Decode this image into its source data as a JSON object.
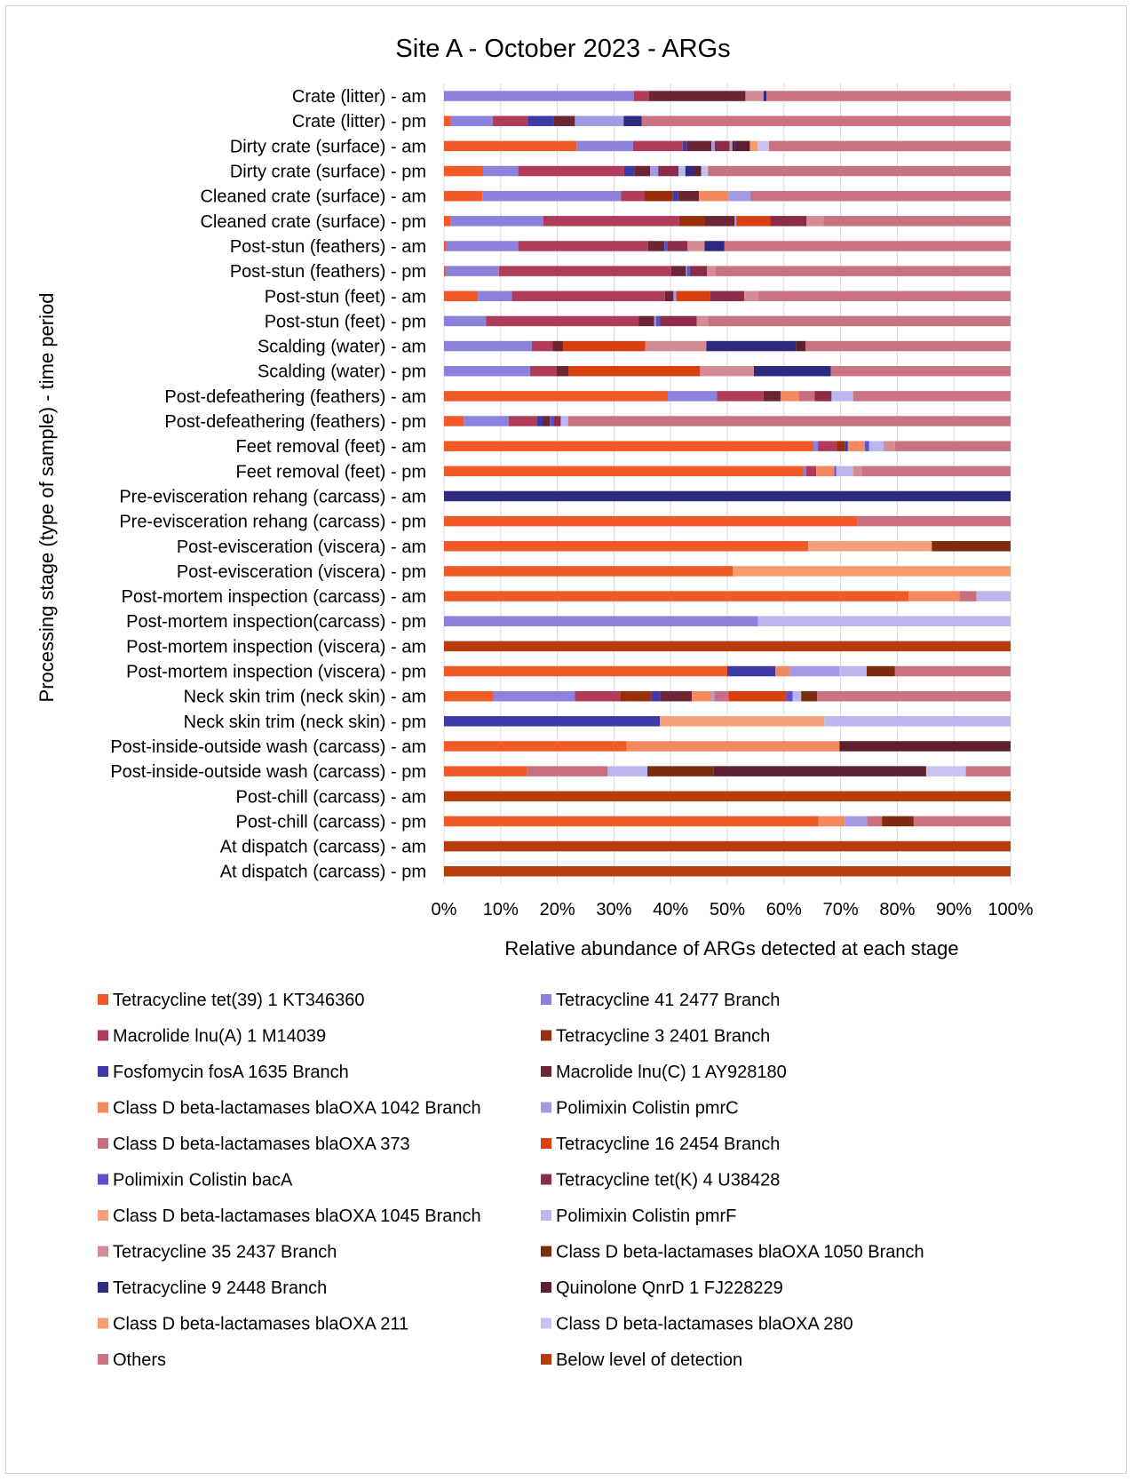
{
  "chart_data": {
    "type": "bar",
    "orientation": "horizontal",
    "stacked": "100%",
    "title": "Site A - October 2023 - ARGs",
    "xlabel": "Relative abundance of ARGs detected at each stage",
    "ylabel": "Processing stage (type of sample) - time period",
    "xlim": [
      0,
      100
    ],
    "x_ticks": [
      "0%",
      "10%",
      "20%",
      "30%",
      "40%",
      "50%",
      "60%",
      "70%",
      "80%",
      "90%",
      "100%"
    ],
    "grid": true,
    "legend_position": "bottom",
    "categories": [
      "Crate (litter) - am",
      "Crate (litter) - pm",
      "Dirty crate (surface) - am",
      "Dirty crate (surface) - pm",
      "Cleaned crate (surface) - am",
      "Cleaned crate (surface) - pm",
      "Post-stun (feathers) - am",
      "Post-stun (feathers) - pm",
      "Post-stun (feet) - am",
      "Post-stun (feet) - pm",
      "Scalding (water) - am",
      "Scalding (water) - pm",
      "Post-defeathering (feathers) - am",
      "Post-defeathering (feathers) - pm",
      "Feet removal (feet) - am",
      "Feet removal (feet) - pm",
      "Pre-evisceration rehang (carcass) - am",
      "Pre-evisceration rehang (carcass) - pm",
      "Post-evisceration (viscera) - am",
      "Post-evisceration (viscera) - pm",
      "Post-mortem inspection (carcass) - am",
      "Post-mortem inspection(carcass) - pm",
      "Post-mortem inspection (viscera) - am",
      "Post-mortem inspection (viscera) - pm",
      "Neck skin trim (neck skin) - am",
      "Neck skin trim (neck skin) - pm",
      "Post-inside-outside wash (carcass) - am",
      "Post-inside-outside wash (carcass) - pm",
      "Post-chill (carcass) - am",
      "Post-chill (carcass) - pm",
      "At dispatch (carcass) - am",
      "At dispatch (carcass) - pm"
    ],
    "series": [
      {
        "name": "Tetracycline tet(39) 1 KT346360",
        "color": "#ef5a26",
        "values": [
          0,
          1.2,
          23.5,
          6.9,
          6.5,
          1.2,
          0.4,
          0.3,
          6,
          0,
          0,
          0,
          39.5,
          3.5,
          65.2,
          63.4,
          0,
          73,
          64.3,
          51,
          82,
          0,
          0,
          50,
          8.8,
          0,
          32.3,
          14.7,
          0,
          66.1,
          0,
          0
        ]
      },
      {
        "name": "Tetracycline 41 2477 Branch",
        "color": "#8b82dc",
        "values": [
          33.5,
          7.4,
          10,
          6.2,
          23.5,
          16.3,
          12.7,
          9.4,
          6,
          7.4,
          15.5,
          15.2,
          8.7,
          7.9,
          0.8,
          0.5,
          0,
          0,
          0,
          0,
          0,
          55.4,
          0,
          0,
          14.4,
          0,
          0,
          0,
          0,
          0,
          0,
          0
        ]
      },
      {
        "name": "Macrolide lnu(A) 1 M14039",
        "color": "#b03c5a",
        "values": [
          2.7,
          6.2,
          8.8,
          18.7,
          3.9,
          24,
          22.9,
          30.4,
          27,
          27,
          3.7,
          4.7,
          8.2,
          5,
          3.3,
          1.8,
          0,
          0,
          0,
          0,
          0,
          0,
          0,
          0,
          8,
          0,
          0,
          0,
          0,
          0,
          0,
          0
        ]
      },
      {
        "name": "Tetracycline 3 2401 Branch",
        "color": "#9a2d0a",
        "values": [
          0,
          0,
          0,
          0,
          4.8,
          4.5,
          0,
          0,
          0,
          0,
          0,
          0,
          0,
          0,
          1.5,
          0,
          0,
          0,
          0,
          0,
          0,
          0,
          0,
          0,
          5.6,
          0,
          0,
          0,
          0,
          0,
          0,
          0
        ]
      },
      {
        "name": "Fosfomycin fosA 1635 Branch",
        "color": "#3d3aa8",
        "values": [
          0,
          4.5,
          0.8,
          1.8,
          1,
          0,
          0,
          0,
          0,
          0,
          0,
          0,
          0,
          1,
          0.5,
          0,
          0,
          0,
          0,
          0,
          0,
          0,
          0,
          8.5,
          1.5,
          30.5,
          0,
          0,
          0,
          0,
          0,
          0
        ]
      },
      {
        "name": "Macrolide lnu(C) 1 AY928180",
        "color": "#6b2535",
        "values": [
          17,
          3.8,
          4.3,
          2.8,
          3.5,
          5.3,
          2.9,
          2.6,
          1.5,
          2.7,
          1.8,
          2.1,
          3,
          1.3,
          0,
          0,
          0,
          0,
          0,
          0,
          0,
          0,
          0,
          0,
          5.6,
          0,
          0,
          0,
          0,
          0,
          0,
          0
        ]
      },
      {
        "name": "Class D beta-lactamases blaOXA 1042 Branch",
        "color": "#f4895f",
        "values": [
          0,
          0,
          0,
          0,
          5,
          0,
          0,
          0,
          0,
          0,
          0,
          0,
          3.2,
          0,
          3,
          3.2,
          0,
          0,
          0,
          0,
          9,
          0,
          0,
          2.5,
          3.6,
          0,
          37.7,
          0,
          0,
          4.7,
          0,
          0
        ]
      },
      {
        "name": "Polimixin Colistin pmrC",
        "color": "#a39ae6",
        "values": [
          0,
          8.6,
          0.6,
          1.4,
          3.7,
          0.3,
          0,
          0.2,
          0.5,
          0.3,
          0,
          0,
          0,
          0,
          0,
          0,
          0,
          0,
          0,
          0,
          0,
          0,
          0,
          8.8,
          0.5,
          0,
          0,
          0,
          0,
          3.9,
          0,
          0
        ]
      },
      {
        "name": "Class D beta-lactamases blaOXA 373",
        "color": "#c86e7e",
        "values": [
          0,
          0,
          0,
          0,
          0,
          0,
          0,
          0,
          0,
          0,
          0,
          0,
          2.8,
          0,
          0,
          0,
          0,
          27,
          0,
          0,
          3,
          0,
          0,
          0,
          2.4,
          0,
          0,
          14.2,
          0,
          2.6,
          0,
          0
        ]
      },
      {
        "name": "Tetracycline 16 2454 Branch",
        "color": "#d8400f",
        "values": [
          0,
          0,
          0,
          0,
          0,
          6,
          0,
          0,
          6,
          0,
          14.5,
          23.2,
          0,
          0,
          0,
          0,
          0,
          0,
          0,
          0,
          0,
          0,
          0,
          0,
          10.2,
          0,
          0,
          0,
          0,
          0,
          0,
          0
        ]
      },
      {
        "name": "Polimixin Colistin bacA",
        "color": "#5b52d0",
        "values": [
          0,
          0,
          0,
          0,
          0,
          0,
          0.6,
          0.5,
          0,
          0.7,
          0,
          0,
          0,
          0.6,
          0.7,
          0.3,
          0,
          0,
          0,
          0,
          0,
          0,
          0,
          0,
          1.2,
          0,
          0,
          0,
          0,
          0,
          0,
          0
        ]
      },
      {
        "name": "Tetracycline tet(K) 4 U38428",
        "color": "#8c2c48",
        "values": [
          0,
          0,
          2.6,
          3.6,
          0,
          6.4,
          3.5,
          3,
          6,
          6.5,
          0,
          0,
          3,
          1.3,
          0,
          0,
          0,
          0,
          0,
          0,
          0,
          0,
          0,
          0,
          0,
          0,
          0,
          0,
          0,
          0,
          0,
          0
        ]
      },
      {
        "name": "Class D beta-lactamases blaOXA 1045 Branch",
        "color": "#f5a07a",
        "values": [
          0,
          0,
          0,
          0,
          0,
          0,
          0,
          0,
          0,
          0,
          0,
          0,
          0,
          0,
          0,
          0,
          0,
          0,
          21.8,
          0,
          0,
          0,
          0,
          0,
          0,
          23.2,
          0,
          0,
          0,
          0,
          0,
          0
        ]
      },
      {
        "name": "Polimixin Colistin pmrF",
        "color": "#bcb6ee",
        "values": [
          0,
          0,
          0,
          1.2,
          0,
          0,
          0,
          0,
          0,
          0,
          0,
          0,
          3.8,
          1.3,
          2.6,
          3,
          0,
          0,
          0,
          0,
          6,
          44.6,
          0,
          4.8,
          1.5,
          26.3,
          0,
          7,
          0,
          0,
          0,
          0
        ]
      },
      {
        "name": "Tetracycline 35 2437 Branch",
        "color": "#d48c94",
        "values": [
          3.2,
          0,
          0.5,
          0,
          0,
          3,
          3,
          1.5,
          2.5,
          2,
          10.8,
          9.5,
          0,
          0,
          2,
          1.5,
          0,
          0,
          0,
          0,
          0,
          0,
          0,
          0,
          0,
          0,
          0,
          0,
          0,
          0,
          0,
          0
        ]
      },
      {
        "name": "Class D beta-lactamases blaOXA 1050 Branch",
        "color": "#7c2d0f",
        "values": [
          0,
          0,
          0,
          0,
          0,
          0,
          0,
          0,
          0,
          0,
          0,
          0,
          0,
          0,
          0,
          0,
          0,
          0,
          13.9,
          0,
          0,
          0,
          0,
          5,
          2.8,
          0,
          0,
          11.7,
          0,
          5.6,
          0,
          0
        ]
      },
      {
        "name": "Tetracycline 9 2448 Branch",
        "color": "#2d2a80",
        "values": [
          0.5,
          3.2,
          0.5,
          1.6,
          0,
          0,
          3.5,
          0,
          0,
          0,
          15.8,
          13.6,
          0,
          0,
          0,
          0,
          100,
          0,
          0,
          0,
          0,
          0,
          0,
          0,
          0,
          0,
          0,
          0,
          0,
          0,
          0,
          0
        ]
      },
      {
        "name": "Quinolone QnrD 1 FJ228229",
        "color": "#5e1f2e",
        "values": [
          0,
          0,
          2.6,
          1.2,
          0,
          0,
          0,
          0,
          0,
          0,
          1.7,
          0,
          0,
          0,
          0,
          0,
          0,
          0,
          0,
          0,
          0,
          0,
          0,
          0,
          0,
          0,
          30.3,
          37.5,
          0,
          0,
          0,
          0
        ]
      },
      {
        "name": "Class D beta-lactamases blaOXA 211",
        "color": "#f79a6c",
        "values": [
          0,
          0,
          1.4,
          0,
          0,
          0,
          0,
          0,
          0,
          0,
          0,
          0,
          0,
          0,
          0,
          0,
          0,
          0,
          0,
          49,
          0,
          0,
          0,
          0,
          0,
          0,
          0,
          0,
          0,
          0,
          0,
          0
        ]
      },
      {
        "name": "Class D beta-lactamases blaOXA 280",
        "color": "#c7c2f0",
        "values": [
          0,
          0,
          2,
          1.2,
          0,
          0,
          0,
          0,
          0,
          0,
          0,
          0,
          0,
          0,
          0,
          0,
          0,
          0,
          0,
          0,
          0,
          0,
          0,
          0,
          0,
          0,
          0,
          7,
          0,
          0,
          0,
          0
        ]
      },
      {
        "name": "Others",
        "color": "#c97381",
        "values": [
          43.1,
          65.1,
          42.8,
          53.4,
          44.1,
          33,
          50.5,
          52.1,
          44.5,
          53.4,
          36.2,
          31.7,
          27.8,
          78.1,
          20.4,
          26.3,
          0,
          0,
          0,
          0,
          0,
          0,
          0,
          20.4,
          34.3,
          0,
          0,
          7.9,
          0,
          17.1,
          0,
          0
        ]
      },
      {
        "name": "Below level of detection",
        "color": "#b83c0c",
        "values": [
          0,
          0,
          0,
          0,
          0,
          0,
          0,
          0,
          0,
          0,
          0,
          0,
          0,
          0,
          0,
          0,
          0,
          0,
          0,
          0,
          0,
          0,
          100,
          0,
          0,
          0,
          0,
          0,
          100,
          0,
          100,
          100
        ]
      }
    ]
  }
}
